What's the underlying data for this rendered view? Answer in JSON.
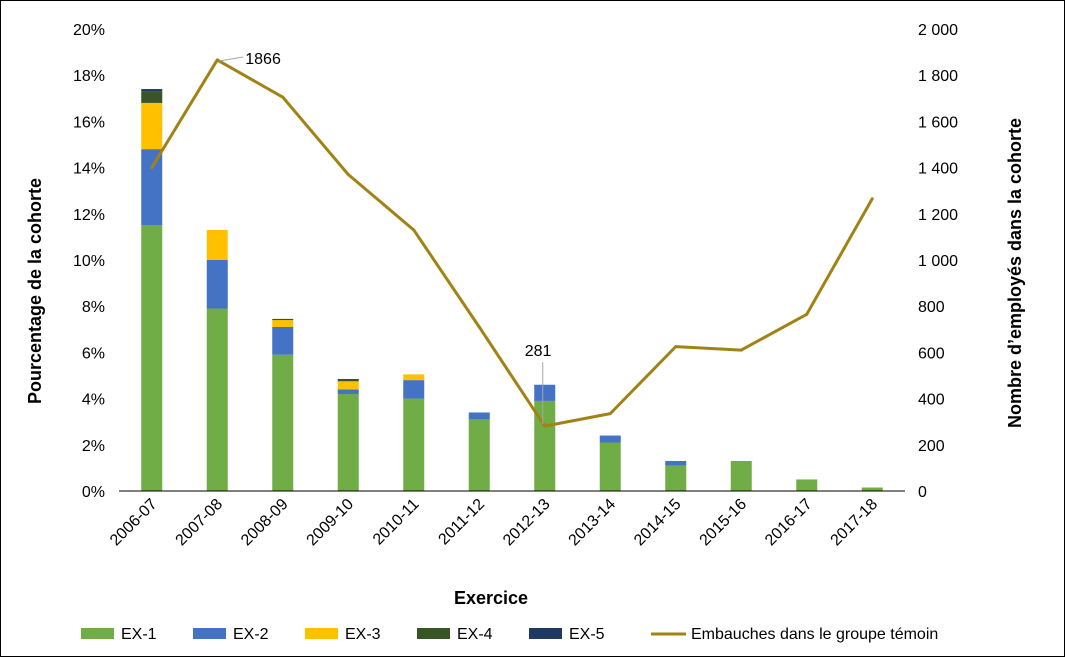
{
  "chart_data": {
    "type": "bar",
    "stacked": true,
    "xlabel": "Exercice",
    "ylabel": "Pourcentage de la cohorte",
    "y2label": "Nombre d’employés dans la cohorte",
    "categories": [
      "2006-07",
      "2007-08",
      "2008-09",
      "2009-10",
      "2010-11",
      "2011-12",
      "2012-13",
      "2013-14",
      "2014-15",
      "2015-16",
      "2016-17",
      "2017-18"
    ],
    "ylim": [
      0,
      20
    ],
    "y_ticks": [
      "0%",
      "2%",
      "4%",
      "6%",
      "8%",
      "10%",
      "12%",
      "14%",
      "16%",
      "18%",
      "20%"
    ],
    "y2lim": [
      0,
      2000
    ],
    "y2_ticks": [
      "0",
      "200",
      "400",
      "600",
      "800",
      "1 000",
      "1 200",
      "1 400",
      "1 600",
      "1 800",
      "2 000"
    ],
    "grid": false,
    "legend_position": "bottom",
    "series": [
      {
        "name": "EX-1",
        "color": "#70AD47",
        "values": [
          11.5,
          7.9,
          5.9,
          4.2,
          4.0,
          3.1,
          3.9,
          2.1,
          1.1,
          1.3,
          0.5,
          0.15
        ]
      },
      {
        "name": "EX-2",
        "color": "#4472C4",
        "values": [
          3.3,
          2.1,
          1.2,
          0.2,
          0.8,
          0.3,
          0.7,
          0.3,
          0.2,
          0.0,
          0.0,
          0.0
        ]
      },
      {
        "name": "EX-3",
        "color": "#FFC000",
        "values": [
          2.0,
          1.3,
          0.3,
          0.35,
          0.25,
          0.0,
          0.0,
          0.0,
          0.0,
          0.0,
          0.0,
          0.0
        ]
      },
      {
        "name": "EX-4",
        "color": "#375623",
        "values": [
          0.5,
          0.0,
          0.05,
          0.1,
          0.0,
          0.0,
          0.0,
          0.0,
          0.0,
          0.0,
          0.0,
          0.0
        ]
      },
      {
        "name": "EX-5",
        "color": "#203864",
        "values": [
          0.1,
          0.0,
          0.0,
          0.0,
          0.0,
          0.0,
          0.0,
          0.0,
          0.0,
          0.0,
          0.0,
          0.0
        ]
      }
    ],
    "line_series": {
      "name": "Embauches dans le groupe témoin",
      "color": "#A08314",
      "axis": "right",
      "values": [
        1400,
        1866,
        1705,
        1370,
        1130,
        710,
        281,
        335,
        625,
        610,
        765,
        1265
      ]
    },
    "annotations": [
      {
        "text": "1866",
        "category": "2007-08"
      },
      {
        "text": "281",
        "category": "2012-13"
      }
    ]
  }
}
